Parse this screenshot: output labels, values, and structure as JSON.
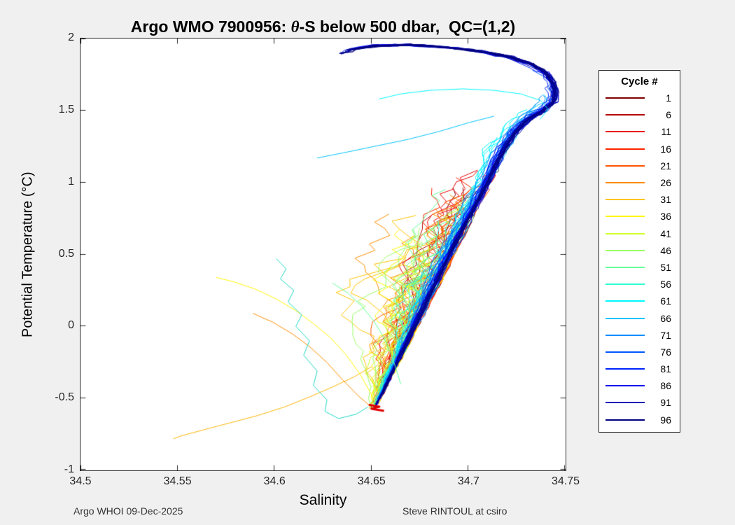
{
  "figure": {
    "background": "#f0f0f0",
    "title_prefix": "Argo WMO 7900956: ",
    "title_theta": "θ",
    "title_suffix": "-S below 500 dbar,  QC=(1,2)",
    "footer_left": "Argo WHOI 09-Dec-2025",
    "footer_right": "Steve RINTOUL at csiro"
  },
  "chart_data": {
    "type": "line",
    "title": "Argo WMO 7900956: θ-S below 500 dbar,  QC=(1,2)",
    "xlabel": "Salinity",
    "ylabel": "Potential Temperature (°C)",
    "xlim": [
      34.5,
      34.75
    ],
    "ylim": [
      -1,
      2
    ],
    "xticks": [
      "34.5",
      "34.55",
      "34.6",
      "34.65",
      "34.7",
      "34.75"
    ],
    "xtick_values": [
      34.5,
      34.55,
      34.6,
      34.65,
      34.7,
      34.75
    ],
    "yticks": [
      "-1",
      "-0.5",
      "0",
      "0.5",
      "1",
      "1.5",
      "2"
    ],
    "ytick_values": [
      -1,
      -0.5,
      0,
      0.5,
      1,
      1.5,
      2
    ],
    "grid": false,
    "marker": "none",
    "legend": {
      "title": "Cycle #",
      "position": "right-outside",
      "entries": [
        {
          "label": "1",
          "color": "#800000"
        },
        {
          "label": "6",
          "color": "#B50000"
        },
        {
          "label": "11",
          "color": "#EB0000"
        },
        {
          "label": "16",
          "color": "#FF2200"
        },
        {
          "label": "21",
          "color": "#FF5700"
        },
        {
          "label": "26",
          "color": "#FF8D00"
        },
        {
          "label": "31",
          "color": "#FFC300"
        },
        {
          "label": "36",
          "color": "#FFF800"
        },
        {
          "label": "41",
          "color": "#D0FF2F"
        },
        {
          "label": "46",
          "color": "#9AFF65"
        },
        {
          "label": "51",
          "color": "#65FF9A"
        },
        {
          "label": "56",
          "color": "#2FFFD0"
        },
        {
          "label": "61",
          "color": "#00F8FF"
        },
        {
          "label": "66",
          "color": "#00C3FF"
        },
        {
          "label": "71",
          "color": "#008DFF"
        },
        {
          "label": "76",
          "color": "#0057FF"
        },
        {
          "label": "81",
          "color": "#0022FF"
        },
        {
          "label": "86",
          "color": "#0000EB"
        },
        {
          "label": "91",
          "color": "#0000B5"
        },
        {
          "label": "96",
          "color": "#000080"
        }
      ]
    },
    "envelope": [
      [
        34.6515,
        -0.57
      ],
      [
        34.656,
        -0.46
      ],
      [
        34.661,
        -0.32
      ],
      [
        34.6665,
        -0.17
      ],
      [
        34.672,
        -0.02
      ],
      [
        34.6775,
        0.13
      ],
      [
        34.683,
        0.28
      ],
      [
        34.6885,
        0.43
      ],
      [
        34.694,
        0.58
      ],
      [
        34.7,
        0.73
      ],
      [
        34.7055,
        0.87
      ],
      [
        34.7105,
        1.0
      ],
      [
        34.7145,
        1.12
      ],
      [
        34.719,
        1.24
      ],
      [
        34.7245,
        1.35
      ],
      [
        34.7315,
        1.44
      ],
      [
        34.739,
        1.5
      ],
      [
        34.7445,
        1.56
      ],
      [
        34.7455,
        1.63
      ],
      [
        34.744,
        1.7
      ],
      [
        34.7405,
        1.76
      ],
      [
        34.7335,
        1.82
      ],
      [
        34.7225,
        1.87
      ],
      [
        34.707,
        1.91
      ],
      [
        34.689,
        1.94
      ],
      [
        34.67,
        1.955
      ],
      [
        34.653,
        1.95
      ],
      [
        34.641,
        1.925
      ],
      [
        34.635,
        1.895
      ]
    ],
    "profile_groups": [
      {
        "cycle": 1,
        "color": "#800000",
        "n": 5,
        "theta_max": 1.05,
        "theta_var": 0.5,
        "bias": 0.004,
        "wander": 0.02,
        "hook": false,
        "lw": 1,
        "seed": 101
      },
      {
        "cycle": 6,
        "color": "#B50000",
        "n": 5,
        "theta_max": 1.12,
        "theta_var": 0.45,
        "bias": 0.005,
        "wander": 0.022,
        "hook": false,
        "lw": 1,
        "seed": 102
      },
      {
        "cycle": 11,
        "color": "#EB0000",
        "n": 5,
        "theta_max": 1.22,
        "theta_var": 0.4,
        "bias": 0.006,
        "wander": 0.028,
        "hook": false,
        "lw": 1,
        "seed": 103
      },
      {
        "cycle": 16,
        "color": "#FF2200",
        "n": 5,
        "theta_max": 1.2,
        "theta_var": 0.45,
        "bias": 0.007,
        "wander": 0.03,
        "hook": false,
        "lw": 1,
        "seed": 104
      },
      {
        "cycle": 21,
        "color": "#FF5700",
        "n": 5,
        "theta_max": 1.12,
        "theta_var": 0.5,
        "bias": 0.009,
        "wander": 0.036,
        "hook": false,
        "lw": 1,
        "seed": 105
      },
      {
        "cycle": 26,
        "color": "#FF8D00",
        "n": 5,
        "theta_max": 1.02,
        "theta_var": 0.5,
        "bias": 0.012,
        "wander": 0.042,
        "hook": false,
        "lw": 1,
        "seed": 106
      },
      {
        "cycle": 31,
        "color": "#FFC300",
        "n": 5,
        "theta_max": 0.95,
        "theta_var": 0.5,
        "bias": 0.015,
        "wander": 0.05,
        "hook": false,
        "lw": 1,
        "seed": 107
      },
      {
        "cycle": 36,
        "color": "#FFF800",
        "n": 5,
        "theta_max": 0.88,
        "theta_var": 0.45,
        "bias": 0.018,
        "wander": 0.05,
        "hook": false,
        "lw": 1,
        "seed": 108
      },
      {
        "cycle": 41,
        "color": "#D0FF2F",
        "n": 5,
        "theta_max": 0.92,
        "theta_var": 0.4,
        "bias": 0.014,
        "wander": 0.04,
        "hook": false,
        "lw": 1,
        "seed": 109
      },
      {
        "cycle": 46,
        "color": "#9AFF65",
        "n": 5,
        "theta_max": 0.95,
        "theta_var": 0.4,
        "bias": 0.011,
        "wander": 0.032,
        "hook": false,
        "lw": 1,
        "seed": 110
      },
      {
        "cycle": 51,
        "color": "#65FF9A",
        "n": 5,
        "theta_max": 0.98,
        "theta_var": 0.35,
        "bias": 0.009,
        "wander": 0.024,
        "hook": false,
        "lw": 1,
        "seed": 111
      },
      {
        "cycle": 56,
        "color": "#2FFFD0",
        "n": 5,
        "theta_max": 1.05,
        "theta_var": 0.35,
        "bias": 0.007,
        "wander": 0.02,
        "hook": false,
        "lw": 1,
        "seed": 112
      },
      {
        "cycle": 61,
        "color": "#00F8FF",
        "n": 5,
        "theta_max": 1.55,
        "theta_var": 0.3,
        "bias": 0.005,
        "wander": 0.012,
        "hook": false,
        "lw": 1,
        "seed": 113
      },
      {
        "cycle": 66,
        "color": "#00C3FF",
        "n": 5,
        "theta_max": 1.62,
        "theta_var": 0.25,
        "bias": 0.004,
        "wander": 0.009,
        "hook": false,
        "lw": 1,
        "seed": 114
      },
      {
        "cycle": 71,
        "color": "#008DFF",
        "n": 5,
        "theta_max": 1.68,
        "theta_var": 0.2,
        "bias": 0.003,
        "wander": 0.006,
        "hook": false,
        "lw": 1,
        "seed": 115
      },
      {
        "cycle": 76,
        "color": "#0057FF",
        "n": 6,
        "theta_max": 1.84,
        "theta_var": 0.15,
        "bias": 0.0022,
        "wander": 0.005,
        "hook": false,
        "lw": 1,
        "seed": 116
      },
      {
        "cycle": 81,
        "color": "#0022FF",
        "n": 6,
        "theta_max": 1.9,
        "theta_var": 0.08,
        "bias": 0.0016,
        "wander": 0.004,
        "hook": true,
        "lw": 1,
        "seed": 117
      },
      {
        "cycle": 86,
        "color": "#0000EB",
        "n": 7,
        "theta_max": 1.95,
        "theta_var": 0.05,
        "bias": 0.0012,
        "wander": 0.0032,
        "hook": true,
        "lw": 1,
        "seed": 118
      },
      {
        "cycle": 91,
        "color": "#0000B5",
        "n": 8,
        "theta_max": 1.95,
        "theta_var": 0.04,
        "bias": 0.0009,
        "wander": 0.0028,
        "hook": true,
        "lw": 1,
        "seed": 119
      },
      {
        "cycle": 96,
        "color": "#000080",
        "n": 8,
        "theta_max": 1.95,
        "theta_var": 0.03,
        "bias": 0.0006,
        "wander": 0.0022,
        "hook": true,
        "lw": 1,
        "seed": 120
      }
    ],
    "special_lines": [
      {
        "name": "amber-deep-tail",
        "color": "#FFB400",
        "lw": 1,
        "points": [
          [
            34.65,
            -0.28
          ],
          [
            34.641,
            -0.35
          ],
          [
            34.63,
            -0.42
          ],
          [
            34.618,
            -0.49
          ],
          [
            34.605,
            -0.56
          ],
          [
            34.591,
            -0.62
          ],
          [
            34.577,
            -0.67
          ],
          [
            34.563,
            -0.72
          ],
          [
            34.552,
            -0.76
          ],
          [
            34.548,
            -0.78
          ]
        ]
      },
      {
        "name": "yellow-left-arc",
        "color": "#FFF800",
        "lw": 1,
        "points": [
          [
            34.57,
            0.34
          ],
          [
            34.579,
            0.31
          ],
          [
            34.59,
            0.26
          ],
          [
            34.601,
            0.19
          ],
          [
            34.611,
            0.11
          ],
          [
            34.62,
            0.02
          ],
          [
            34.629,
            -0.08
          ],
          [
            34.637,
            -0.2
          ],
          [
            34.644,
            -0.33
          ],
          [
            34.649,
            -0.45
          ],
          [
            34.652,
            -0.53
          ]
        ]
      },
      {
        "name": "orange-left-arc",
        "color": "#FF8D00",
        "lw": 1,
        "points": [
          [
            34.589,
            0.09
          ],
          [
            34.599,
            0.03
          ],
          [
            34.609,
            -0.05
          ],
          [
            34.618,
            -0.14
          ],
          [
            34.627,
            -0.25
          ],
          [
            34.635,
            -0.37
          ],
          [
            34.643,
            -0.48
          ],
          [
            34.649,
            -0.55
          ]
        ]
      },
      {
        "name": "teal-long-excursion",
        "color": "#1FD7C4",
        "lw": 1,
        "points": [
          [
            34.601,
            0.47
          ],
          [
            34.606,
            0.4
          ],
          [
            34.603,
            0.33
          ],
          [
            34.61,
            0.25
          ],
          [
            34.607,
            0.17
          ],
          [
            34.614,
            0.08
          ],
          [
            34.611,
            0.0
          ],
          [
            34.618,
            -0.1
          ],
          [
            34.615,
            -0.2
          ],
          [
            34.622,
            -0.31
          ],
          [
            34.62,
            -0.41
          ],
          [
            34.627,
            -0.51
          ],
          [
            34.626,
            -0.59
          ],
          [
            34.633,
            -0.64
          ],
          [
            34.642,
            -0.61
          ],
          [
            34.648,
            -0.56
          ]
        ]
      },
      {
        "name": "green-left-strand",
        "color": "#65FF9A",
        "lw": 1,
        "points": [
          [
            34.63,
            0.3
          ],
          [
            34.638,
            0.23
          ],
          [
            34.645,
            0.14
          ],
          [
            34.651,
            0.04
          ],
          [
            34.656,
            -0.07
          ],
          [
            34.66,
            -0.19
          ],
          [
            34.663,
            -0.31
          ],
          [
            34.665,
            -0.4
          ]
        ]
      },
      {
        "name": "cyan-top-hook",
        "color": "#00F8FF",
        "lw": 1,
        "points": [
          [
            34.737,
            1.44
          ],
          [
            34.741,
            1.51
          ],
          [
            34.737,
            1.57
          ],
          [
            34.727,
            1.615
          ],
          [
            34.713,
            1.64
          ],
          [
            34.697,
            1.65
          ],
          [
            34.68,
            1.64
          ],
          [
            34.665,
            1.615
          ],
          [
            34.654,
            1.58
          ]
        ]
      },
      {
        "name": "cyan-stray-upper",
        "color": "#00C3FF",
        "lw": 1,
        "points": [
          [
            34.622,
            1.17
          ],
          [
            34.637,
            1.21
          ],
          [
            34.653,
            1.255
          ],
          [
            34.669,
            1.3
          ],
          [
            34.685,
            1.355
          ],
          [
            34.7,
            1.415
          ],
          [
            34.713,
            1.46
          ]
        ]
      },
      {
        "name": "red-bottom-blob",
        "color": "#E00000",
        "lw": 3,
        "points": [
          [
            34.649,
            -0.545
          ],
          [
            34.654,
            -0.558
          ],
          [
            34.65,
            -0.572
          ],
          [
            34.656,
            -0.585
          ]
        ]
      }
    ]
  }
}
